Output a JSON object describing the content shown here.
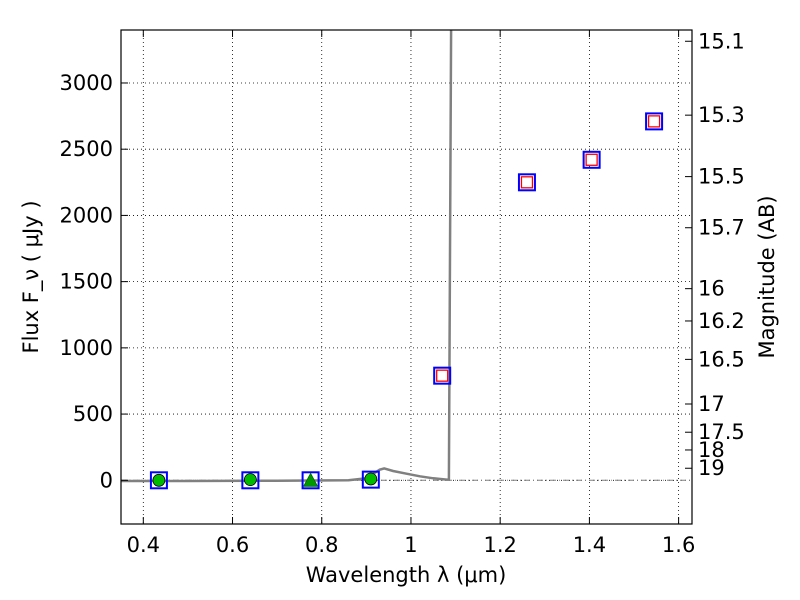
{
  "chart_data": {
    "type": "scatter",
    "title": "",
    "xlabel": "Wavelength  λ (μm)",
    "ylabel": "Flux  F_ν  ( μJy )",
    "ylabel_right": "Magnitude (AB)",
    "xlim": [
      0.35,
      1.63
    ],
    "ylim": [
      -330,
      3400
    ],
    "grid": true,
    "x_ticks": [
      0.4,
      0.6,
      0.8,
      1.0,
      1.2,
      1.4,
      1.6
    ],
    "x_tick_labels": [
      "0.4",
      "0.6",
      "0.8",
      "1",
      "1.2",
      "1.4",
      "1.6"
    ],
    "y_ticks": [
      0,
      500,
      1000,
      1500,
      2000,
      2500,
      3000
    ],
    "y_tick_labels": [
      "0",
      "500",
      "1000",
      "1500",
      "2000",
      "2500",
      "3000"
    ],
    "right_ticks": [
      {
        "label": "15.1",
        "flux": 3315
      },
      {
        "label": "15.3",
        "flux": 2757
      },
      {
        "label": "15.5",
        "flux": 2293
      },
      {
        "label": "15.7",
        "flux": 1907
      },
      {
        "label": "16",
        "flux": 1447
      },
      {
        "label": "16.2",
        "flux": 1203
      },
      {
        "label": "16.5",
        "flux": 913
      },
      {
        "label": "17",
        "flux": 576
      },
      {
        "label": "17.5",
        "flux": 363
      },
      {
        "label": "18",
        "flux": 229
      },
      {
        "label": "19",
        "flux": 91
      }
    ],
    "series": [
      {
        "marker": "blue-square",
        "color": "#0000ff",
        "points": [
          {
            "x": 0.435,
            "y": 0
          },
          {
            "x": 0.64,
            "y": 0
          },
          {
            "x": 0.775,
            "y": 0
          },
          {
            "x": 0.91,
            "y": 5
          },
          {
            "x": 1.07,
            "y": 790
          },
          {
            "x": 1.26,
            "y": 2250
          },
          {
            "x": 1.405,
            "y": 2420
          },
          {
            "x": 1.545,
            "y": 2710
          }
        ]
      },
      {
        "marker": "red-square",
        "color": "#ff0000",
        "points": [
          {
            "x": 1.07,
            "y": 790
          },
          {
            "x": 1.26,
            "y": 2250
          },
          {
            "x": 1.405,
            "y": 2420
          },
          {
            "x": 1.545,
            "y": 2710
          }
        ]
      },
      {
        "marker": "green-circle",
        "color": "#00bb00",
        "points": [
          {
            "x": 0.435,
            "y": 0
          },
          {
            "x": 0.64,
            "y": 5
          },
          {
            "x": 0.91,
            "y": 10
          }
        ]
      },
      {
        "marker": "green-triangle",
        "color": "#009900",
        "points": [
          {
            "x": 0.775,
            "y": 0
          }
        ]
      }
    ],
    "model_curve": {
      "color": "#808080",
      "points": [
        {
          "x": 0.35,
          "y": -5
        },
        {
          "x": 0.5,
          "y": -5
        },
        {
          "x": 0.7,
          "y": -3
        },
        {
          "x": 0.86,
          "y": 0
        },
        {
          "x": 0.9,
          "y": 15
        },
        {
          "x": 0.93,
          "y": 80
        },
        {
          "x": 0.94,
          "y": 90
        },
        {
          "x": 0.96,
          "y": 70
        },
        {
          "x": 0.99,
          "y": 50
        },
        {
          "x": 1.02,
          "y": 30
        },
        {
          "x": 1.05,
          "y": 15
        },
        {
          "x": 1.08,
          "y": 5
        },
        {
          "x": 1.085,
          "y": 5
        },
        {
          "x": 1.09,
          "y": 3400
        }
      ]
    },
    "hline": {
      "y": 0,
      "style": "dash-dot",
      "color": "#808080"
    }
  }
}
